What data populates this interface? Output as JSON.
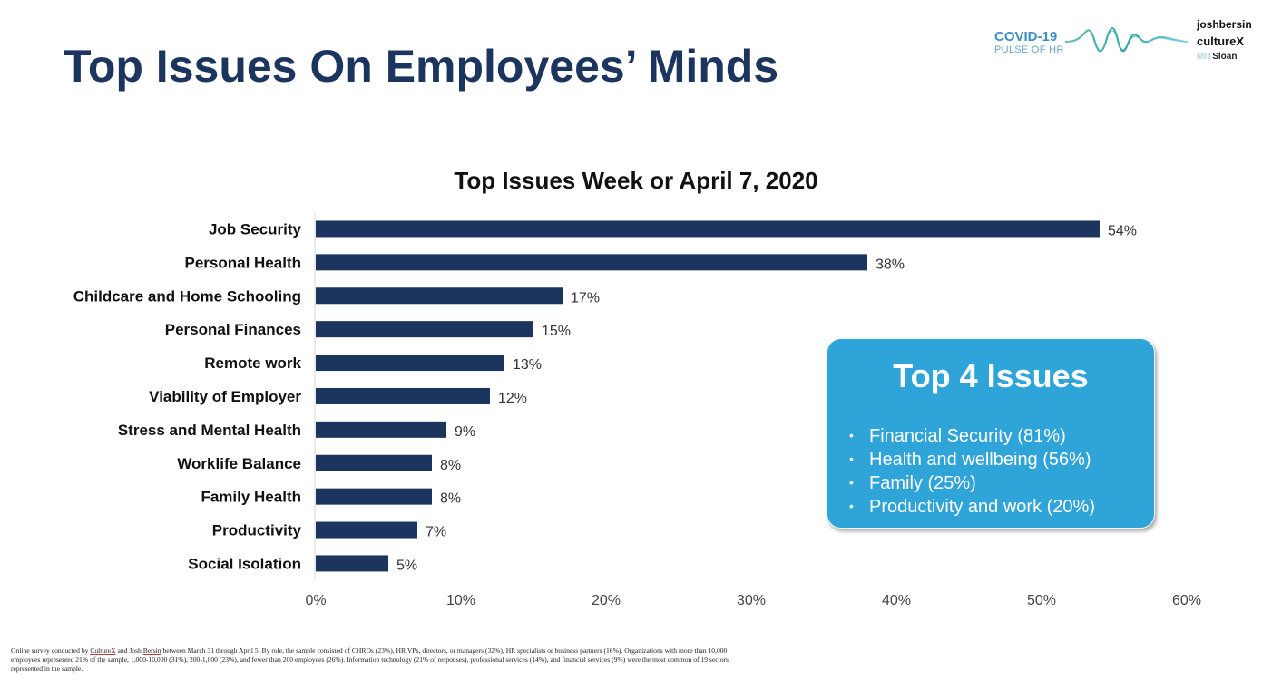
{
  "page": {
    "title": "Top Issues On Employees’ Minds"
  },
  "logo": {
    "covid": "COVID-19",
    "pulse": "PULSE OF HR",
    "joshbersin": "joshbersin",
    "culturex": "cultureX",
    "mit": "MIT",
    "sloan": "Sloan"
  },
  "colors": {
    "title": "#1b355f",
    "bar": "#1b355f",
    "callout": "#2fa4d9"
  },
  "chart_data": {
    "type": "bar",
    "orientation": "horizontal",
    "title": "Top Issues Week or April 7, 2020",
    "xlabel": "",
    "ylabel": "",
    "categories": [
      "Job Security",
      "Personal Health",
      "Childcare and Home Schooling",
      "Personal Finances",
      "Remote work",
      "Viability of Employer",
      "Stress and Mental Health",
      "Worklife Balance",
      "Family Health",
      "Productivity",
      "Social Isolation"
    ],
    "values": [
      54,
      38,
      17,
      15,
      13,
      12,
      9,
      8,
      8,
      7,
      5
    ],
    "data_labels": [
      "54%",
      "38%",
      "17%",
      "15%",
      "13%",
      "12%",
      "9%",
      "8%",
      "8%",
      "7%",
      "5%"
    ],
    "xlim": [
      0,
      60
    ],
    "xticks": [
      0,
      10,
      20,
      30,
      40,
      50,
      60
    ],
    "xtick_labels": [
      "0%",
      "10%",
      "20%",
      "30%",
      "40%",
      "50%",
      "60%"
    ],
    "grid": false,
    "legend": "none"
  },
  "callout": {
    "title": "Top 4 Issues",
    "bullet": "•",
    "items": [
      "Financial Security (81%)",
      "Health and wellbeing (56%)",
      "Family (25%)",
      "Productivity and work (20%)"
    ]
  },
  "footnote": {
    "p1": "Online survey conducted by ",
    "culturex": "CultureX",
    "p2": " and Josh ",
    "bersin": "Bersin",
    "p3": " between March 31 through April 5.  By role, the sample consisted of CHROs (23%), HR VPs, directors, or managers (32%), HR specialists or business partners (16%). Organizations with more than 10,000 employees represented 21% of the sample, 1,000-10,000 (31%), 200-1,000 (23%), and fewer than 200 employees (26%). Information technology (21% of responses), professional services (14%), and financial services (9%) were the most common of 19 sectors represented in the sample."
  }
}
